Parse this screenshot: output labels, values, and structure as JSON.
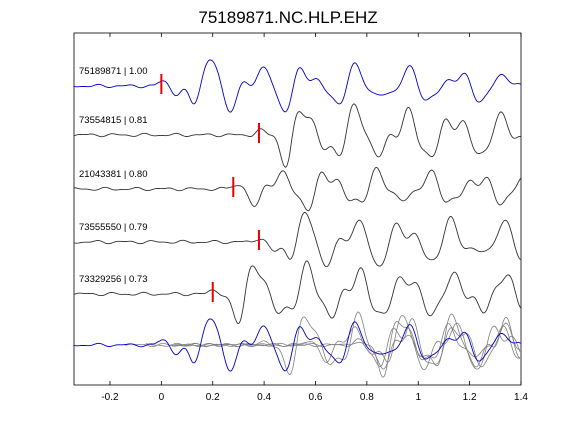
{
  "chart_data": {
    "type": "line",
    "title": "75189871.NC.HLP.EHZ",
    "xlabel": "",
    "ylabel": "",
    "xlim": [
      -0.34,
      1.4
    ],
    "xticks": [
      -0.2,
      0,
      0.2,
      0.4,
      0.6,
      0.8,
      1,
      1.2,
      1.4
    ],
    "xtick_labels": [
      "-0.2",
      "0",
      "0.2",
      "0.4",
      "0.6",
      "0.8",
      "1",
      "1.2",
      "1.4"
    ],
    "grid": false,
    "colors": {
      "reference": "#0000cc",
      "trace": "#333333",
      "overlay": "#808080",
      "pick": "#ee0000"
    },
    "series": [
      {
        "label": "75189871 | 1.00",
        "pick_time": 0.0,
        "reference": true
      },
      {
        "label": "73554815 | 0.81",
        "pick_time": 0.38,
        "reference": false
      },
      {
        "label": "21043381 | 0.80",
        "pick_time": 0.28,
        "reference": false
      },
      {
        "label": "73555550 | 0.79",
        "pick_time": 0.38,
        "reference": false
      },
      {
        "label": "73329256 | 0.73",
        "pick_time": 0.2,
        "reference": false
      }
    ],
    "overlay": "stacked aligned traces"
  }
}
